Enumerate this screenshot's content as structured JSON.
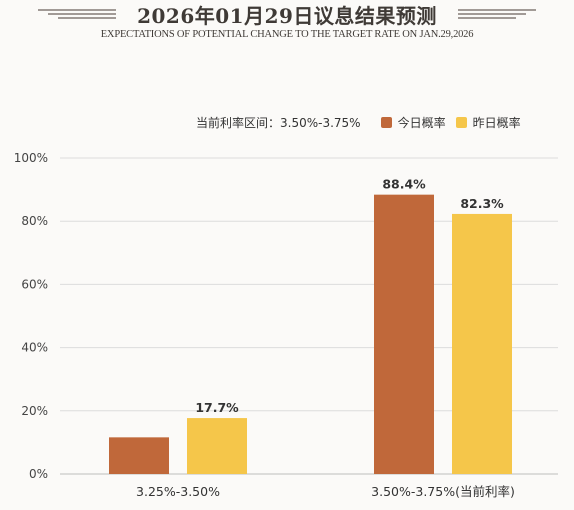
{
  "header": {
    "title": "2026年01月29日议息结果预测",
    "subtitle": "EXPECTATIONS OF POTENTIAL CHANGE TO THE TARGET RATE ON JAN.29,2026"
  },
  "legend": {
    "current_rate_label": "当前利率区间：3.50%-3.75%",
    "today_label": "今日概率",
    "yesterday_label": "昨日概率"
  },
  "colors": {
    "today": "#c0683a",
    "yesterday": "#f5c64a",
    "grid": "#dcdcdc",
    "text": "#3f3a36"
  },
  "chart_data": {
    "type": "bar",
    "categories": [
      "3.25%-3.50%",
      "3.50%-3.75%(当前利率)"
    ],
    "series": [
      {
        "name": "今日概率",
        "values": [
          11.6,
          88.4
        ]
      },
      {
        "name": "昨日概率",
        "values": [
          17.7,
          82.3
        ]
      }
    ],
    "data_labels": [
      [
        null,
        "88.4%"
      ],
      [
        "17.7%",
        "82.3%"
      ]
    ],
    "yticks": [
      "0%",
      "20%",
      "40%",
      "60%",
      "80%",
      "100%"
    ],
    "ylim": [
      0,
      100
    ],
    "grid": true,
    "legend_position": "top-right"
  }
}
